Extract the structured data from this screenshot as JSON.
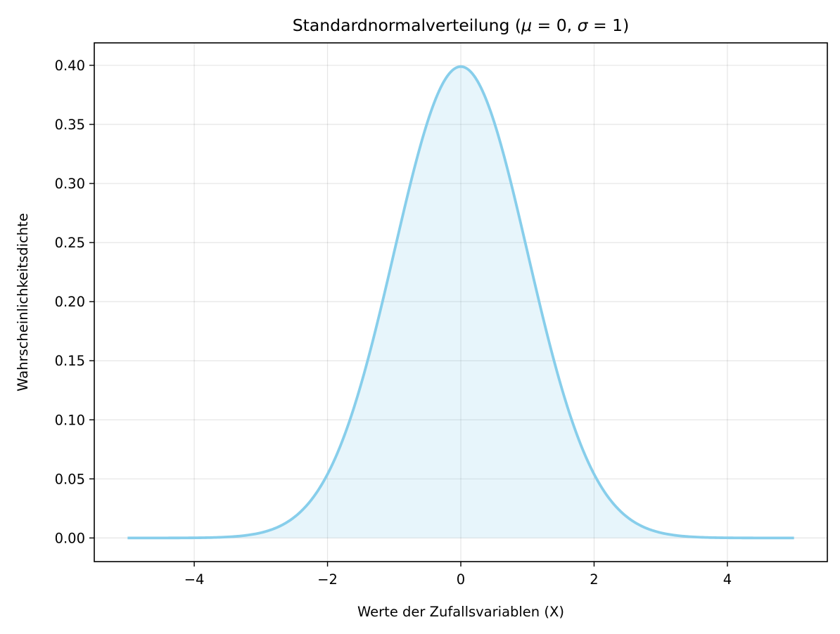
{
  "chart_data": {
    "type": "area",
    "title": "Standardnormalverteilung (μ = 0, σ = 1)",
    "xlabel": "Werte der Zufallsvariablen (X)",
    "ylabel": "Wahrscheinlichkeitsdichte",
    "xlim": [
      -5.5,
      5.5
    ],
    "ylim": [
      -0.02,
      0.419
    ],
    "x_ticks": [
      -4,
      -2,
      0,
      2,
      4
    ],
    "x_tick_labels": [
      "−4",
      "−2",
      "0",
      "2",
      "4"
    ],
    "y_ticks": [
      0,
      0.05,
      0.1,
      0.15,
      0.2,
      0.25,
      0.3,
      0.35,
      0.4
    ],
    "y_tick_labels": [
      "0.00",
      "0.05",
      "0.10",
      "0.15",
      "0.20",
      "0.25",
      "0.30",
      "0.35",
      "0.40"
    ],
    "grid": true,
    "series": [
      {
        "function": "normal_pdf",
        "mu": 0,
        "sigma": 1,
        "x_range": [
          -5,
          5
        ],
        "x": [
          -5,
          -4.5,
          -4,
          -3.5,
          -3,
          -2.5,
          -2,
          -1.5,
          -1,
          -0.5,
          0,
          0.5,
          1,
          1.5,
          2,
          2.5,
          3,
          3.5,
          4,
          4.5,
          5
        ],
        "values": [
          1.5e-06,
          1.6e-05,
          0.000134,
          0.000873,
          0.00443,
          0.0175,
          0.054,
          0.1295,
          0.242,
          0.3521,
          0.3989,
          0.3521,
          0.242,
          0.1295,
          0.054,
          0.0175,
          0.00443,
          0.000873,
          0.000134,
          1.6e-05,
          1.5e-06
        ],
        "line_color": "#87ceeb",
        "fill_color": "#87ceeb",
        "fill_opacity": 0.2
      }
    ]
  }
}
